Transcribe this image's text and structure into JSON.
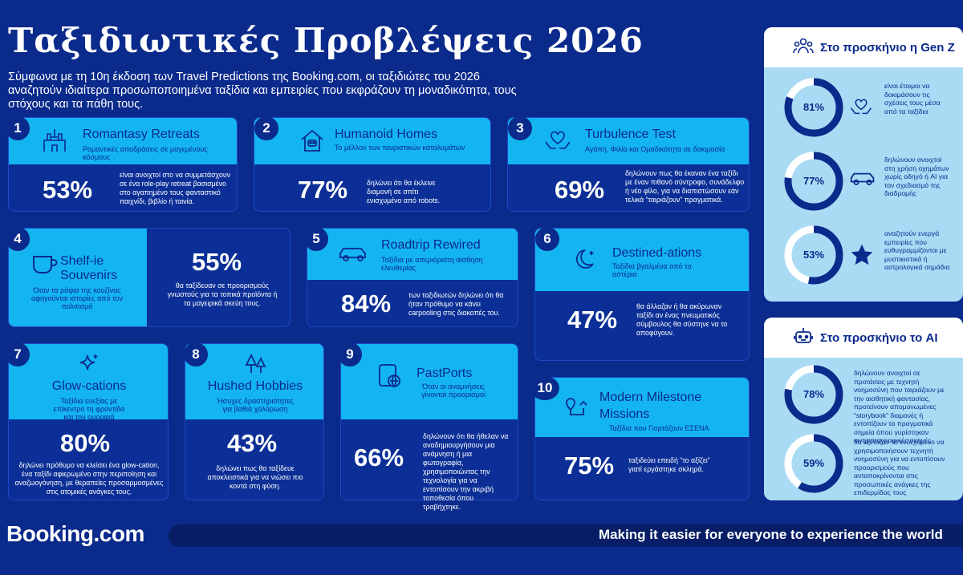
{
  "header": {
    "title": "Ταξιδιωτικές Προβλέψεις 2026",
    "intro": "Σύμφωνα με τη 10η έκδοση των Travel Predictions της Booking.com, οι ταξιδιώτες του 2026 αναζητούν ιδιαίτερα προσωποποιημένα ταξίδια και εμπειρίες που εκφράζουν τη μοναδικότητα, τους στόχους και τα πάθη τους."
  },
  "cards": [
    {
      "num": "1",
      "title": "Romantasy Retreats",
      "subtitle": "Ρομαντικές αποδράσεις σε μαγεμένους κόσμους",
      "pct": "53%",
      "desc": "είναι ανοιχτοί στο να συμμετάσχουν σε ένα role-play retreat βασισμένο στο αγαπημένο τους φανταστικό παιχνίδι, βιβλίο ή ταινία.",
      "icon": "castle-icon"
    },
    {
      "num": "2",
      "title": "Humanoid Homes",
      "subtitle": "Το μέλλον των τουριστικών καταλυμάτων",
      "pct": "77%",
      "desc": "δηλώνει ότι θα έκλεινε διαμονή σε σπίτι ενισχυμένο από robots.",
      "icon": "robot-home-icon"
    },
    {
      "num": "3",
      "title": "Turbulence Test",
      "subtitle": "Αγάπη, Φιλία και Ομαδικότητα σε δοκιμασία",
      "pct": "69%",
      "desc": "δηλώνουν πως θα έκαναν ένα ταξίδι με έναν πιθανό σύντροφο, συνάδελφο ή νέο φίλο, για να διαπιστώσουν εάν τελικά “ταιριάζουν” πραγματικά.",
      "icon": "heart-hands-icon"
    },
    {
      "num": "4",
      "title": "Shelf-ie Souvenirs",
      "subtitle": "Όταν τα ράφια της κουζίνας αφηγούνται ιστορίες από τον πολιτισμό",
      "pct": "55%",
      "desc": "θα ταξίδευαν σε προορισμούς γνωστούς για τα τοπικά προϊόντα ή τα μαγειρικά σκεύη τους.",
      "icon": "mug-icon"
    },
    {
      "num": "5",
      "title": "Roadtrip Rewired",
      "subtitle": "Ταξίδια με απεριόριστη αίσθηση ελευθερίας",
      "pct": "84%",
      "desc": "των ταξιδιωτών δηλώνει ότι θα ήταν πρόθυμο να κάνει carpooling στις διακοπές του.",
      "icon": "car-icon"
    },
    {
      "num": "6",
      "title": "Destined-ations",
      "subtitle": "Ταξίδια βγαλμένα από τα αστέρια",
      "pct": "47%",
      "desc": "θα άλλαζαν ή θα ακύρωναν ταξίδι αν ένας πνευματικός σύμβουλος θα σύστηνε να το αποφύγουν.",
      "icon": "moon-icon"
    },
    {
      "num": "7",
      "title": "Glow-cations",
      "subtitle": "Ταξίδια ευεξίας με επίκεντρο τη φροντίδα και την ομορφιά",
      "pct": "80%",
      "desc": "δηλώνει πρόθυμο να κλείσει ένα glow-cation, ένα ταξίδι αφιερωμένο στην περιποίηση και αναζωογόνηση, με θεραπείες προσαρμοσμένες στις ατομικές ανάγκες τους.",
      "icon": "sparkle-icon"
    },
    {
      "num": "8",
      "title": "Hushed Hobbies",
      "subtitle": "Ήσυχες δραστηριότητες για βαθιά χαλάρωση",
      "pct": "43%",
      "desc": "δηλώνει πως θα ταξίδευε αποκλειστικά για να νιώσει πιο κοντά στη φύση.",
      "icon": "trees-icon"
    },
    {
      "num": "9",
      "title": "PastPorts",
      "subtitle": "Όταν οι αναμνήσεις γίνονται προορισμοί",
      "pct": "66%",
      "desc": "δηλώνουν ότι θα ήθελαν να αναδημιουργήσουν μια ανάμνηση ή μια φωτογραφία, χρησιμοποιώντας την τεχνολογία για να εντοπίσουν την ακριβή τοποθεσία όπου τραβήχτηκε.",
      "icon": "passport-icon"
    },
    {
      "num": "10",
      "title": "Modern Milestone Missions",
      "subtitle": "Ταξίδια που Γιορτάζουν ΕΣΕΝΑ",
      "pct": "75%",
      "desc": "ταξιδεύει επειδή “το αξίζει” γιατί εργάστηκε σκληρά.",
      "icon": "route-icon"
    }
  ],
  "genz": {
    "heading": "Στο προσκήνιο η Gen Z",
    "stats": [
      {
        "pct": "81%",
        "value": 81,
        "desc": "είναι έτοιμοι να δοκιμάσουν τις σχέσεις τους μέσα από τα ταξίδια",
        "icon": "heart-hands-icon"
      },
      {
        "pct": "77%",
        "value": 77,
        "desc": "δηλώνουν ανοιχτοί στη χρήση οχημάτων χωρίς οδηγό ή AI για τον σχεδιασμό της διαδρομής",
        "icon": "car-icon"
      },
      {
        "pct": "53%",
        "value": 53,
        "desc": "αναζητούν ενεργά εμπειρίες που ευθυγραμμίζονται με μυστικιστικά ή αστρολογικά σημάδια",
        "icon": "star-icon"
      }
    ]
  },
  "ai": {
    "heading": "Στο προσκήνιο το AI",
    "stats": [
      {
        "pct": "78%",
        "value": 78,
        "desc": "δηλώνουν ανοιχτοί σε προτάσεις με τεχνητή νοημοσύνη που ταιριάζουν με την αισθητική φαντασίας, προτείνουν απομονωμένες “storybook” διαμονές ή εντοπίζουν τα πραγματικά σημεία όπου γυρίστηκαν κινηματογραφικές σκηνές"
      },
      {
        "pct": "59%",
        "value": 59,
        "desc": "θα εξέταζαν το ενδεχόμενο να χρησιμοποιήσουν τεχνητή νοημοσύνη για να εντοπίσουν προορισμούς που ανταποκρίνονται στις προσωπικές ανάγκες της επιδερμίδας τους"
      }
    ]
  },
  "footer": {
    "logo": "Booking.com",
    "tagline": "Making it easier for everyone to experience the world"
  },
  "colors": {
    "navy": "#0a2a8c",
    "cyan": "#14b4f0",
    "light": "#a9dbf5"
  }
}
